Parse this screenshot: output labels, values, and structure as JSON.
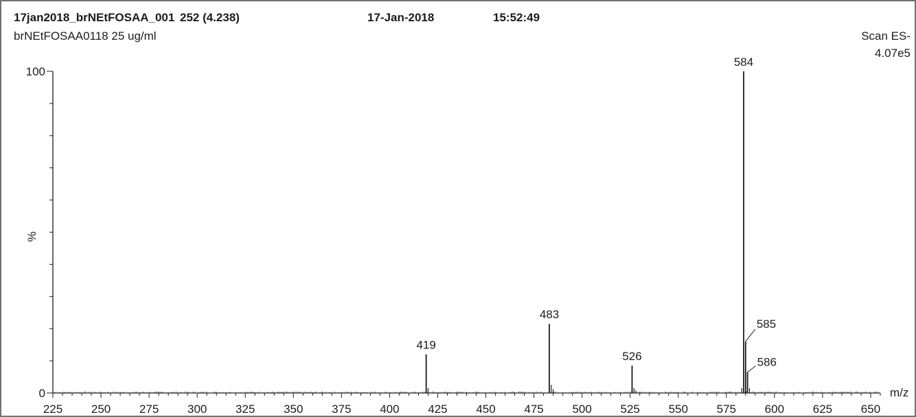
{
  "header": {
    "run_title": "17jan2018_brNEtFOSAA_001",
    "scan_info": "252 (4.238)",
    "date": "17-Jan-2018",
    "time": "15:52:49",
    "sample": "brNEtFOSAA0118 25 ug/ml",
    "scan_mode": "Scan ES-",
    "base_intensity": "4.07e5"
  },
  "chart_data": {
    "type": "bar",
    "title": "17jan2018_brNEtFOSAA_001",
    "xlabel": "m/z",
    "ylabel": "%",
    "xlim": [
      225,
      655
    ],
    "ylim": [
      0,
      100
    ],
    "x_ticks": [
      225,
      250,
      275,
      300,
      325,
      350,
      375,
      400,
      425,
      450,
      475,
      500,
      525,
      550,
      575,
      600,
      625,
      650
    ],
    "y_ticks": [
      0,
      100
    ],
    "peaks": [
      {
        "mz": 419,
        "rel": 12,
        "label": "419"
      },
      {
        "mz": 483,
        "rel": 21.5,
        "label": "483"
      },
      {
        "mz": 526,
        "rel": 8.5,
        "label": "526"
      },
      {
        "mz": 584,
        "rel": 100,
        "label": "584"
      },
      {
        "mz": 585,
        "rel": 16,
        "label": "585"
      },
      {
        "mz": 586,
        "rel": 6.5,
        "label": "586"
      }
    ],
    "minor_peaks": [
      {
        "mz": 420,
        "rel": 1.5
      },
      {
        "mz": 484,
        "rel": 2.5
      },
      {
        "mz": 485,
        "rel": 1.2
      },
      {
        "mz": 527,
        "rel": 1.5
      },
      {
        "mz": 528,
        "rel": 0.8
      },
      {
        "mz": 583,
        "rel": 1.5
      },
      {
        "mz": 587,
        "rel": 1.5
      }
    ]
  }
}
